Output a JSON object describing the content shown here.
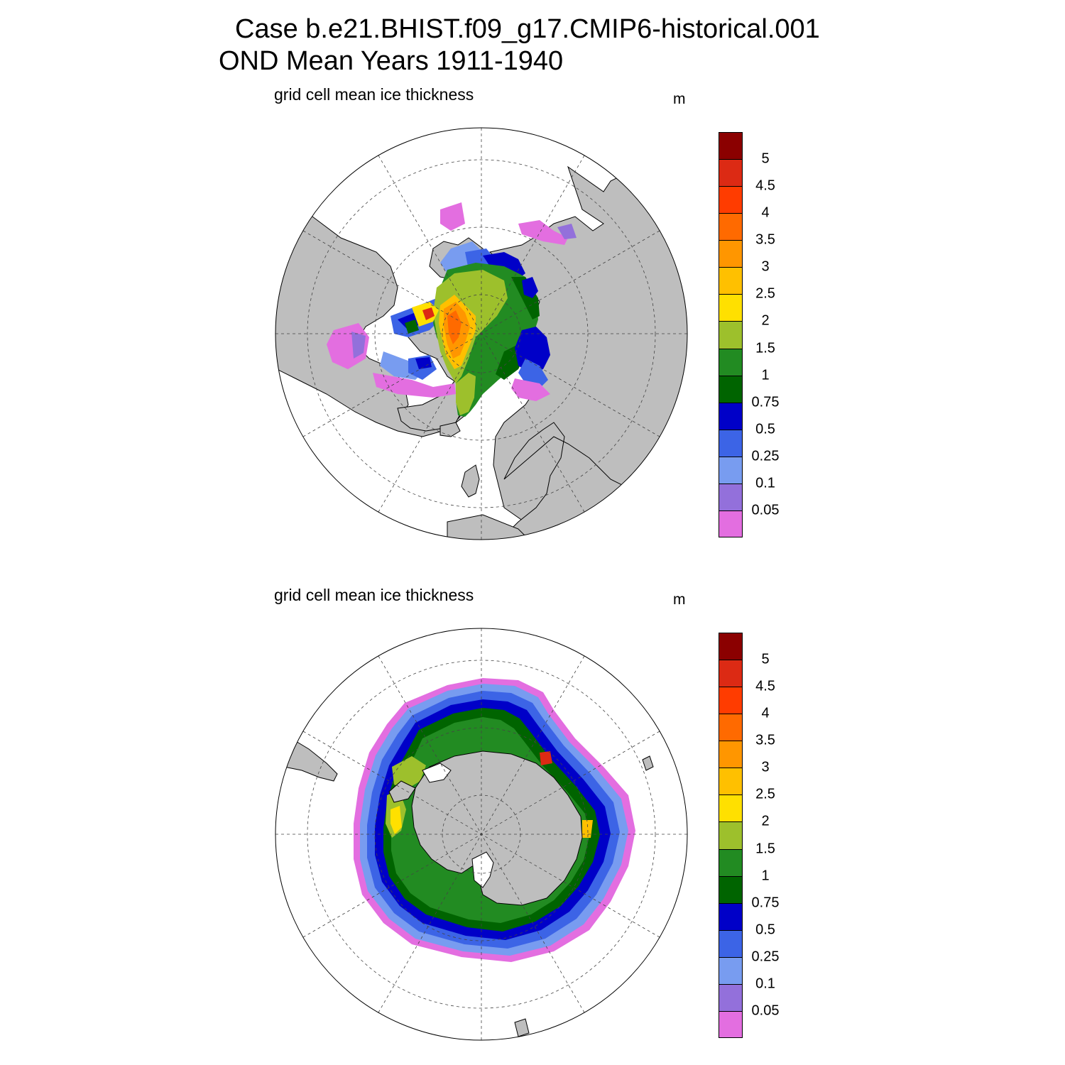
{
  "title": {
    "line1": "Case b.e21.BHIST.f09_g17.CMIP6-historical.001",
    "line2": "OND Mean   Years 1911-1940"
  },
  "colors": {
    "land": "#bebebe",
    "ocean_no_ice": "#ffffff",
    "border": "#000000"
  },
  "colorbar": {
    "units": "m",
    "labels": [
      "5",
      "4.5",
      "4",
      "3.5",
      "3",
      "2.5",
      "2",
      "1.5",
      "1",
      "0.75",
      "0.5",
      "0.25",
      "0.1",
      "0.05"
    ],
    "colors_top_to_bottom": [
      "#8b0000",
      "#dc2a14",
      "#ff3c00",
      "#ff6a00",
      "#ff9600",
      "#ffc000",
      "#ffe000",
      "#9dc02c",
      "#228b22",
      "#006400",
      "#0000c8",
      "#3c64e6",
      "#789cf0",
      "#9370db",
      "#e36ee0"
    ]
  },
  "panels": [
    {
      "id": "north",
      "subtitle": "grid cell mean ice thickness",
      "hemisphere": "Arctic"
    },
    {
      "id": "south",
      "subtitle": "grid cell mean ice thickness",
      "hemisphere": "Antarctic"
    }
  ]
}
